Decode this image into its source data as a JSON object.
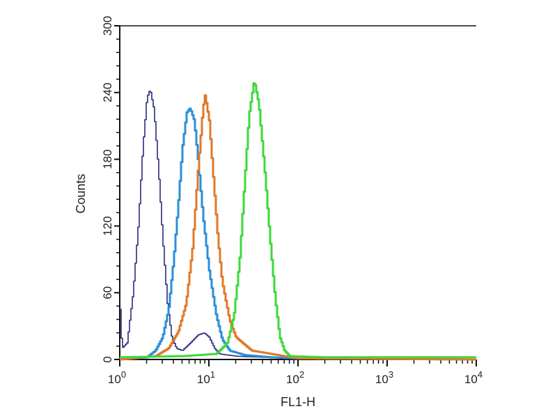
{
  "chart_data": {
    "type": "line",
    "title": "",
    "xlabel": "FL1-H",
    "ylabel": "Counts",
    "x_scale": "log",
    "xlim": [
      1,
      10000
    ],
    "ylim": [
      0,
      300
    ],
    "x_ticks": [
      {
        "base": "10",
        "exp": "0"
      },
      {
        "base": "10",
        "exp": "1"
      },
      {
        "base": "10",
        "exp": "2"
      },
      {
        "base": "10",
        "exp": "3"
      },
      {
        "base": "10",
        "exp": "4"
      }
    ],
    "y_ticks": [
      "0",
      "60",
      "120",
      "180",
      "240",
      "300"
    ],
    "grid": false,
    "series": [
      {
        "color": "#2a2a7a",
        "points": [
          [
            1.0,
            45
          ],
          [
            1.05,
            10
          ],
          [
            1.2,
            15
          ],
          [
            1.4,
            60
          ],
          [
            1.6,
            120
          ],
          [
            1.8,
            190
          ],
          [
            2.0,
            235
          ],
          [
            2.17,
            243
          ],
          [
            2.4,
            225
          ],
          [
            2.7,
            170
          ],
          [
            3.0,
            110
          ],
          [
            3.4,
            50
          ],
          [
            3.8,
            20
          ],
          [
            4.3,
            10
          ],
          [
            5,
            8
          ],
          [
            6,
            14
          ],
          [
            7.5,
            22
          ],
          [
            8.8,
            24
          ],
          [
            10,
            20
          ],
          [
            11.5,
            10
          ],
          [
            13,
            5
          ],
          [
            20,
            3
          ],
          [
            40,
            2
          ],
          [
            70,
            1
          ],
          [
            10000,
            0
          ]
        ]
      },
      {
        "color": "#2a8fd8",
        "points": [
          [
            1,
            0
          ],
          [
            2,
            2
          ],
          [
            2.5,
            8
          ],
          [
            3,
            20
          ],
          [
            3.5,
            45
          ],
          [
            4,
            90
          ],
          [
            4.5,
            140
          ],
          [
            5,
            190
          ],
          [
            5.6,
            222
          ],
          [
            6.1,
            226
          ],
          [
            6.8,
            215
          ],
          [
            7.5,
            180
          ],
          [
            8.5,
            130
          ],
          [
            10,
            80
          ],
          [
            12,
            40
          ],
          [
            14,
            18
          ],
          [
            17,
            8
          ],
          [
            25,
            4
          ],
          [
            50,
            2
          ],
          [
            100,
            1
          ],
          [
            10000,
            0
          ]
        ]
      },
      {
        "color": "#e0782a",
        "points": [
          [
            1,
            0
          ],
          [
            2.5,
            3
          ],
          [
            3.5,
            10
          ],
          [
            4.5,
            25
          ],
          [
            5.5,
            50
          ],
          [
            6.5,
            100
          ],
          [
            7.5,
            170
          ],
          [
            8.5,
            225
          ],
          [
            9,
            238
          ],
          [
            10,
            215
          ],
          [
            11,
            170
          ],
          [
            12.5,
            110
          ],
          [
            14,
            70
          ],
          [
            17,
            35
          ],
          [
            20,
            20
          ],
          [
            30,
            8
          ],
          [
            50,
            5
          ],
          [
            70,
            3
          ],
          [
            100,
            1
          ],
          [
            10000,
            0
          ]
        ]
      },
      {
        "color": "#3ed83a",
        "points": [
          [
            1,
            2
          ],
          [
            5,
            3
          ],
          [
            12,
            5
          ],
          [
            16,
            15
          ],
          [
            19,
            40
          ],
          [
            22,
            90
          ],
          [
            25,
            160
          ],
          [
            28,
            220
          ],
          [
            32,
            251
          ],
          [
            36,
            230
          ],
          [
            42,
            170
          ],
          [
            48,
            110
          ],
          [
            55,
            55
          ],
          [
            62,
            20
          ],
          [
            70,
            8
          ],
          [
            80,
            3
          ],
          [
            200,
            2
          ],
          [
            10000,
            2
          ]
        ]
      }
    ]
  }
}
